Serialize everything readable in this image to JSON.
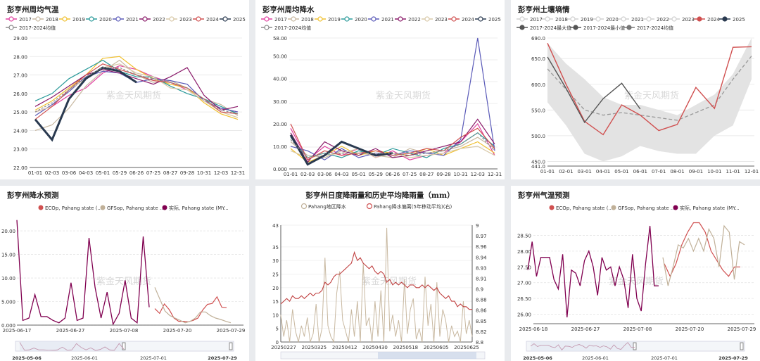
{
  "panels": {
    "p1": {
      "title": "彭亨州周均气温",
      "watermark": "紫金天风期货"
    },
    "p2": {
      "title": "彭亨州周均降水",
      "watermark": "紫金天风期货"
    },
    "p3": {
      "title": "彭亨州土壤墒情",
      "watermark": "紫金天风期货"
    },
    "p4": {
      "title": "彭亨州降水预测",
      "watermark": "紫金天风期货"
    },
    "p5": {
      "title": "彭亨州日度降雨量和历史平均降雨量（mm）",
      "watermark": "紫金天风期货"
    },
    "p6": {
      "title": "彭亨州气温预测",
      "watermark": "紫金天风期货"
    }
  },
  "colors": {
    "y2017": "#e040a0",
    "y2018": "#c8b8a0",
    "y2019": "#f0c030",
    "y2020": "#2a9a9a",
    "y2021": "#5a5ab8",
    "y2022": "#8a1a6a",
    "y2023": "#d8c8a8",
    "y2024": "#d05050",
    "y2025": "#2a3a50",
    "avg": "#8a8a8a",
    "ecop": "#d05050",
    "gfsop": "#c0b098",
    "actual": "#800050"
  },
  "chart_data": [
    {
      "id": "p1",
      "type": "line",
      "title": "彭亨州周均气温",
      "legend": [
        "2017",
        "2018",
        "2019",
        "2020",
        "2021",
        "2022",
        "2023",
        "2024",
        "2025",
        "2017-2024均值"
      ],
      "x_ticks": [
        "01-01",
        "02-03",
        "03-06",
        "04-03",
        "05-01",
        "05-29",
        "06-26",
        "07-25",
        "08-27",
        "09-28",
        "10-31",
        "12-03",
        "12-31"
      ],
      "y_ticks": [
        "22.00",
        "23.00",
        "24.00",
        "25.00",
        "26.00",
        "27.00",
        "28.00",
        "29.00"
      ],
      "ylim": [
        22,
        29
      ],
      "series": [
        {
          "name": "2017",
          "values": [
            25.0,
            25.3,
            25.9,
            26.3,
            27.1,
            27.5,
            27.3,
            26.9,
            26.6,
            26.2,
            25.6,
            25.2,
            25.0
          ]
        },
        {
          "name": "2018",
          "values": [
            24.0,
            24.3,
            25.2,
            26.4,
            27.2,
            27.8,
            27.0,
            26.6,
            26.7,
            26.3,
            25.7,
            25.4,
            24.8
          ]
        },
        {
          "name": "2019",
          "values": [
            25.1,
            25.6,
            26.3,
            27.0,
            27.9,
            28.0,
            27.3,
            26.8,
            26.5,
            26.3,
            25.5,
            24.9,
            24.6
          ]
        },
        {
          "name": "2020",
          "values": [
            25.6,
            26.0,
            26.8,
            27.3,
            27.8,
            27.2,
            26.9,
            26.9,
            26.4,
            26.0,
            25.7,
            25.3,
            24.9
          ]
        },
        {
          "name": "2021",
          "values": [
            24.8,
            25.4,
            26.1,
            26.9,
            27.2,
            27.1,
            26.6,
            26.8,
            26.7,
            26.5,
            25.6,
            25.2,
            25.0
          ]
        },
        {
          "name": "2022",
          "values": [
            25.3,
            25.8,
            26.4,
            27.0,
            27.3,
            27.1,
            26.8,
            26.5,
            26.9,
            27.4,
            25.9,
            25.1,
            25.3
          ]
        },
        {
          "name": "2023",
          "values": [
            25.0,
            25.3,
            26.2,
            26.8,
            27.4,
            27.6,
            27.1,
            26.9,
            26.3,
            26.2,
            25.6,
            25.0,
            24.7
          ]
        },
        {
          "name": "2024",
          "values": [
            24.6,
            25.3,
            26.2,
            27.0,
            27.6,
            27.3,
            27.0,
            26.7,
            26.6,
            26.3,
            25.7,
            25.0,
            24.9
          ]
        },
        {
          "name": "2025",
          "values": [
            24.6,
            23.5,
            25.7,
            26.8,
            27.4,
            27.2,
            26.6,
            null,
            null,
            null,
            null,
            null,
            null
          ]
        },
        {
          "name": "2017-2024均值",
          "values": [
            25.0,
            25.5,
            26.2,
            26.9,
            27.4,
            27.4,
            27.0,
            26.8,
            26.6,
            26.3,
            25.7,
            25.1,
            24.9
          ]
        }
      ]
    },
    {
      "id": "p2",
      "type": "line",
      "title": "彭亨州周均降水",
      "legend": [
        "2017",
        "2018",
        "2019",
        "2020",
        "2021",
        "2022",
        "2023",
        "2024",
        "2025",
        "2017-2024均值"
      ],
      "x_ticks": [
        "01-01",
        "02-03",
        "03-06",
        "04-03",
        "05-01",
        "05-29",
        "06-26",
        "07-25",
        "08-27",
        "09-28",
        "10-31",
        "12-03",
        "12-31"
      ],
      "y_ticks": [
        "0.000",
        "10.00",
        "20.00",
        "30.00",
        "40.00",
        "50.00",
        "58.00"
      ],
      "ylim": [
        0,
        58
      ],
      "series": [
        {
          "name": "2017",
          "values": [
            18,
            4,
            10,
            6,
            9,
            5,
            8,
            4,
            6,
            7,
            12,
            20,
            6
          ]
        },
        {
          "name": "2018",
          "values": [
            12,
            6,
            5,
            8,
            7,
            6,
            5,
            9,
            7,
            8,
            10,
            14,
            9
          ]
        },
        {
          "name": "2019",
          "values": [
            9,
            3,
            6,
            10,
            6,
            8,
            7,
            6,
            9,
            6,
            9,
            12,
            7
          ]
        },
        {
          "name": "2020",
          "values": [
            14,
            5,
            7,
            5,
            8,
            6,
            9,
            7,
            5,
            9,
            11,
            16,
            10
          ]
        },
        {
          "name": "2021",
          "values": [
            10,
            8,
            4,
            9,
            5,
            7,
            6,
            8,
            7,
            6,
            13,
            58,
            8
          ]
        },
        {
          "name": "2022",
          "values": [
            16,
            3,
            12,
            8,
            6,
            9,
            5,
            6,
            8,
            10,
            12,
            22,
            11
          ]
        },
        {
          "name": "2023",
          "values": [
            8,
            5,
            6,
            7,
            9,
            5,
            7,
            5,
            6,
            7,
            9,
            10,
            6
          ]
        },
        {
          "name": "2024",
          "values": [
            20,
            4,
            8,
            6,
            7,
            8,
            6,
            7,
            9,
            8,
            14,
            18,
            9
          ]
        },
        {
          "name": "2025",
          "values": [
            15,
            2,
            6,
            12,
            9,
            6,
            7,
            null,
            null,
            null,
            null,
            null,
            null
          ]
        },
        {
          "name": "2017-2024均值",
          "values": [
            13,
            5,
            7,
            7,
            7,
            7,
            7,
            6,
            7,
            8,
            11,
            16,
            8
          ]
        }
      ]
    },
    {
      "id": "p3",
      "type": "line",
      "title": "彭亨州土壤墒情",
      "legend": [
        "2017",
        "2018",
        "2019",
        "2020",
        "2021",
        "2022",
        "2023",
        "2024",
        "2025",
        "2017-2024最大值",
        "2017-2024最小值",
        "2017-2024均值"
      ],
      "x_ticks": [
        "01-01",
        "02-01",
        "03-01",
        "04-01",
        "05-01",
        "06-01",
        "07-01",
        "08-01",
        "09-01",
        "10-01",
        "11-01",
        "12-01"
      ],
      "y_ticks": [
        "441.0",
        "450.0",
        "500.0",
        "550.0",
        "600.0",
        "650.0",
        "690.0"
      ],
      "ylim": [
        441,
        690
      ],
      "series": [
        {
          "name": "2017-2024最大值",
          "values": [
            680,
            640,
            610,
            575,
            560,
            560,
            550,
            540,
            560,
            580,
            620,
            690
          ]
        },
        {
          "name": "2017-2024最小值",
          "values": [
            565,
            520,
            465,
            450,
            460,
            480,
            470,
            465,
            465,
            500,
            520,
            610
          ]
        },
        {
          "name": "2017-2024均值",
          "values": [
            630,
            590,
            550,
            540,
            545,
            540,
            535,
            530,
            545,
            560,
            610,
            655
          ]
        },
        {
          "name": "2024",
          "values": [
            680,
            600,
            528,
            502,
            560,
            540,
            510,
            522,
            594,
            553,
            672,
            673
          ]
        },
        {
          "name": "2025",
          "values": [
            653,
            592,
            526,
            572,
            602,
            552,
            null,
            null,
            null,
            null,
            null,
            null
          ]
        }
      ]
    },
    {
      "id": "p4",
      "type": "line",
      "title": "彭亨州降水预测",
      "legend": [
        "ECOp, Pahang state (...",
        "GFSop, Pahang state ...",
        "实际, Pahang state (MY..."
      ],
      "y_ticks": [
        "0.000",
        "5.000",
        "10.00",
        "15.00",
        "20.00"
      ],
      "x_ticks": [
        "2025-06-17",
        "2025-06-27",
        "2025-07-08",
        "2025-07-20",
        "2025-07-29"
      ],
      "slider_labels": [
        "2025-05-06",
        "2025-06-01",
        "2025-07-01",
        "2025-07-29"
      ],
      "ylim": [
        0,
        23
      ],
      "series": [
        {
          "name": "实际",
          "values": [
            22.3,
            1,
            1.5,
            6.5,
            1.8,
            1.8,
            1,
            0.5,
            1.5,
            9,
            1,
            1.5,
            18.5,
            8,
            1.5,
            7,
            0.2,
            2.5,
            9.5,
            1.5,
            0.5,
            18.8,
            3.8
          ]
        },
        {
          "name": "ECOp",
          "values": [
            3.5,
            2.5,
            4.5,
            3.3,
            1.5,
            0.8,
            0.8,
            0.7,
            1.0,
            1.5,
            3.2,
            4.4,
            4.6,
            6.0,
            3.8,
            3.7
          ]
        },
        {
          "name": "GFSop",
          "values": [
            8,
            5.5,
            3,
            2,
            1.5,
            1,
            0.5,
            0.8,
            1.5,
            2.8,
            2.8,
            2,
            1.5,
            1.2,
            0.8,
            0.5
          ]
        }
      ]
    },
    {
      "id": "p5",
      "type": "line",
      "title": "彭亨州日度降雨量和历史平均降雨量（mm）",
      "legend": [
        "Pahang地区降水",
        "Pahang降水偏离(5年移动平均)(右)"
      ],
      "x_ticks": [
        "20250227",
        "20250325",
        "20250412",
        "20250430",
        "20250518",
        "20250605",
        "20250625"
      ],
      "y_left_ticks": [
        "0",
        "5",
        "10",
        "15",
        "20",
        "25",
        "30",
        "35",
        "43"
      ],
      "y_right_ticks": [
        "8.8",
        "8.82",
        "8.85",
        "8.86",
        "8.88",
        "8.9",
        "8.91",
        "8.93",
        "8.94",
        "8.96",
        "8.97",
        "9"
      ],
      "ylim_left": [
        0,
        43
      ],
      "series": [
        {
          "name": "Pahang地区降水",
          "values": [
            10,
            2,
            8,
            0,
            12,
            4,
            0,
            6,
            2,
            9,
            0,
            3,
            14,
            0,
            5,
            31,
            6,
            2,
            0,
            18,
            26,
            8,
            4,
            0,
            12,
            2,
            15,
            0,
            29,
            6,
            9,
            0,
            15,
            2,
            19,
            0,
            42,
            4,
            10,
            2,
            8,
            0,
            23,
            3,
            12,
            16,
            1,
            5,
            0,
            24,
            6,
            14,
            0,
            22,
            2,
            12,
            8,
            0,
            6,
            2,
            4,
            0,
            15,
            3,
            8,
            2
          ]
        },
        {
          "name": "Pahang降水偏离",
          "values": [
            14,
            15,
            16,
            15,
            17,
            16,
            16,
            17,
            16,
            17,
            18,
            17,
            18,
            18,
            19,
            22,
            21,
            22,
            24,
            25,
            25,
            26,
            27,
            28,
            29,
            33,
            30,
            31,
            29,
            28,
            27,
            28,
            26,
            25,
            26,
            25,
            22,
            23,
            21,
            22,
            21,
            22,
            21,
            20,
            21,
            21,
            20,
            20,
            21,
            20,
            21,
            20,
            19,
            20,
            18,
            17,
            16,
            17,
            15,
            15,
            13,
            14,
            13,
            13,
            12,
            12
          ]
        }
      ]
    },
    {
      "id": "p6",
      "type": "line",
      "title": "彭亨州气温预测",
      "legend": [
        "ECOp, Pahang state (...",
        "GFSop, Pahang state ...",
        "实际, Pahang state (MY..."
      ],
      "y_ticks": [
        "26.00",
        "26.50",
        "27.00",
        "27.50",
        "28.00",
        "28.50"
      ],
      "x_ticks": [
        "2025-06-18",
        "2025-06-27",
        "2025-07-08",
        "2025-07-20",
        "2025-07-29"
      ],
      "slider_labels": [
        "2025-05-06",
        "2025-06-01",
        "2025-07-01",
        "2025-07-29"
      ],
      "ylim": [
        25.7,
        29.0
      ],
      "series": [
        {
          "name": "实际",
          "values": [
            27.4,
            28.3,
            27.2,
            27.8,
            27.8,
            27.8,
            27.1,
            26.8,
            27.9,
            25.9,
            27.4,
            27.3,
            26.9,
            27.7,
            28.0,
            27.5,
            26.6,
            27.8,
            27.4,
            27.5,
            26.9,
            27.5,
            27.1,
            26.2,
            27.9,
            26.5,
            26.1,
            27.6,
            28.8,
            26.9,
            26.9
          ]
        },
        {
          "name": "ECOp",
          "values": [
            27.6,
            27.2,
            27.6,
            28.2,
            28.6,
            28.9,
            28.9,
            28.6,
            28.0,
            27.7,
            27.4,
            27.2,
            27.5,
            27.5
          ]
        },
        {
          "name": "GFSop",
          "values": [
            27.8,
            26.9,
            27.5,
            28.2,
            28.1,
            28.4,
            28.0,
            28.4,
            28.0,
            28.7,
            28.4,
            27.5,
            28.8,
            28.6,
            27.1,
            28.3,
            28.2
          ]
        }
      ]
    }
  ]
}
